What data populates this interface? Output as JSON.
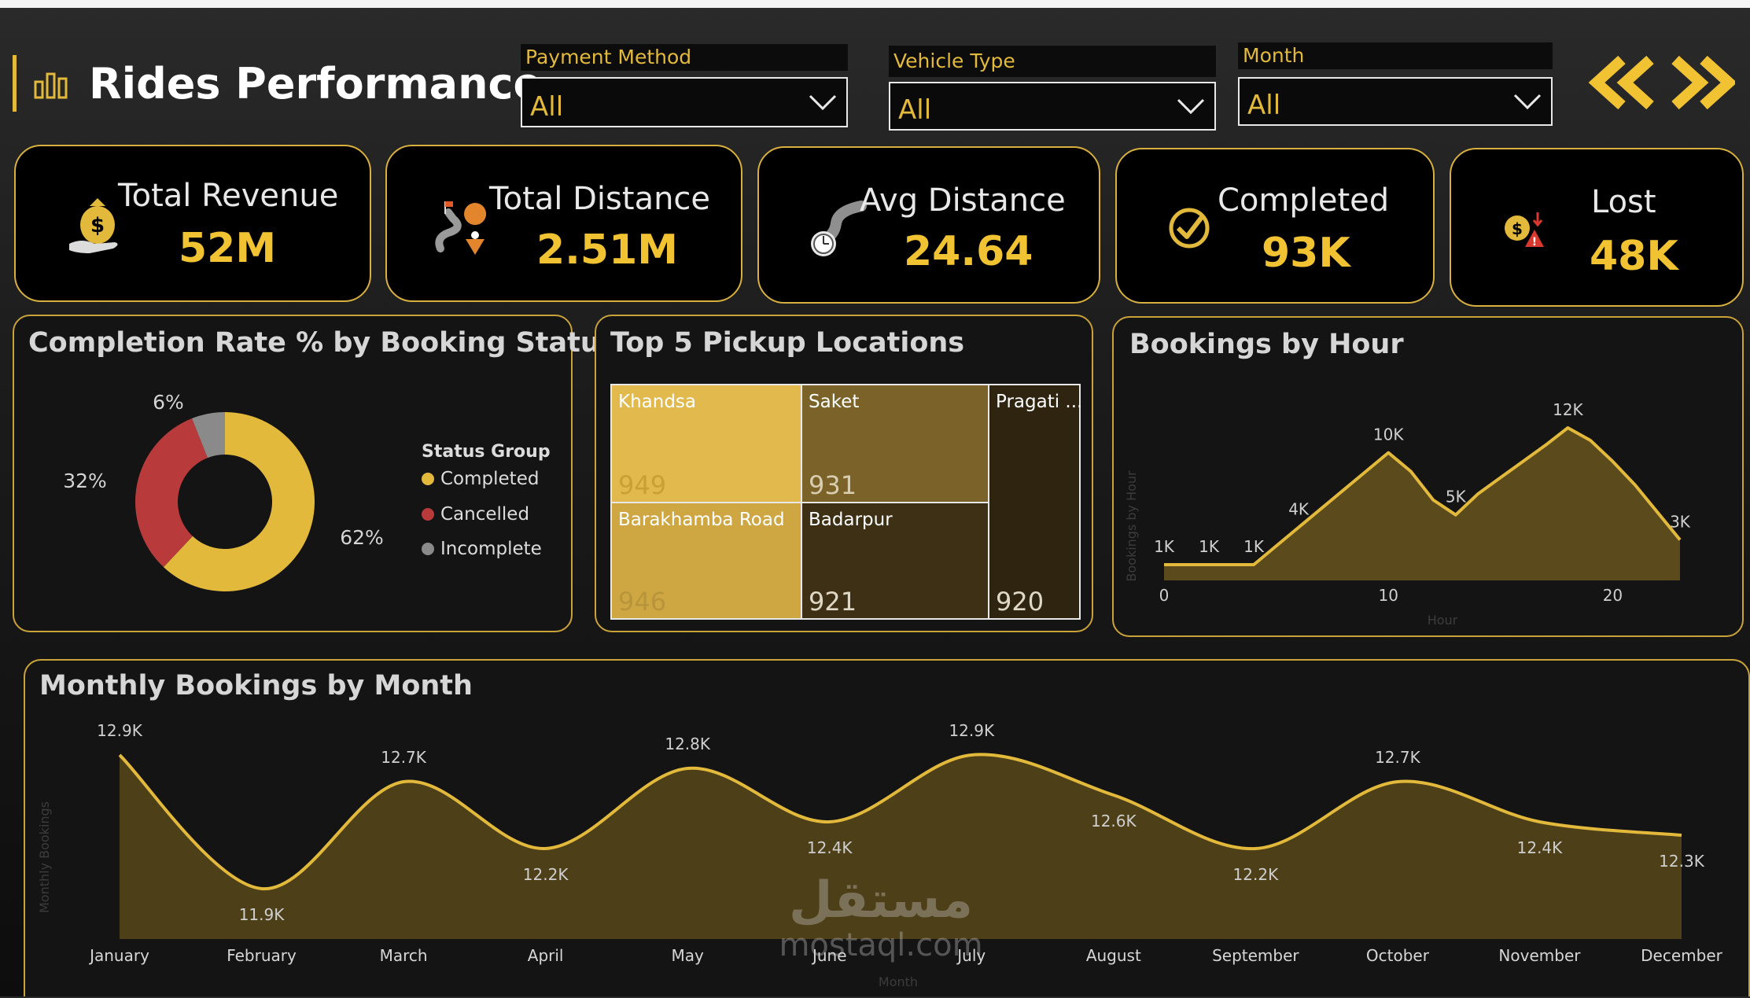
{
  "header": {
    "title": "Rides Performance"
  },
  "filters": [
    {
      "label": "Payment Method",
      "value": "All"
    },
    {
      "label": "Vehicle Type",
      "value": "All"
    },
    {
      "label": "Month",
      "value": "All"
    }
  ],
  "kpis": [
    {
      "label": "Total Revenue",
      "value": "52M",
      "icon": "money-bag-icon"
    },
    {
      "label": "Total Distance",
      "value": "2.51M",
      "icon": "route-pin-icon"
    },
    {
      "label": "Avg Distance",
      "value": "24.64",
      "icon": "road-stopwatch-icon"
    },
    {
      "label": "Completed",
      "value": "93K",
      "icon": "check-circle-icon"
    },
    {
      "label": "Lost",
      "value": "48K",
      "icon": "loss-warning-icon"
    }
  ],
  "colors": {
    "gold": "#e2b93b",
    "red": "#b83a3a",
    "gray": "#8a8a8a",
    "card_border": "#d8b040"
  },
  "watermark": {
    "arabic": "مستقل",
    "latin": "mostaql.com"
  },
  "chart_data": [
    {
      "type": "pie",
      "title": "Completion Rate % by Booking Status",
      "legend_title": "Status Group",
      "legend_position": "right",
      "slices": [
        {
          "name": "Completed",
          "value": 62,
          "label": "62%",
          "color": "#e2b93b"
        },
        {
          "name": "Cancelled",
          "value": 32,
          "label": "32%",
          "color": "#b83a3a"
        },
        {
          "name": "Incomplete",
          "value": 6,
          "label": "6%",
          "color": "#8a8a8a"
        }
      ]
    },
    {
      "type": "treemap",
      "title": "Top 5 Pickup Locations",
      "items": [
        {
          "name": "Khandsa",
          "value": 949,
          "label": "949"
        },
        {
          "name": "Barakhamba Road",
          "value": 946,
          "label": "946"
        },
        {
          "name": "Saket",
          "value": 931,
          "label": "931"
        },
        {
          "name": "Badarpur",
          "value": 921,
          "label": "921"
        },
        {
          "name": "Pragati ...",
          "value": 920,
          "label": "920"
        }
      ]
    },
    {
      "type": "area",
      "title": "Bookings by Hour",
      "xlabel": "Hour",
      "ylabel": "Bookings by Hour",
      "xlim": [
        0,
        23
      ],
      "x_ticks": [
        "0",
        "10",
        "20"
      ],
      "x": [
        0,
        1,
        2,
        3,
        4,
        5,
        6,
        7,
        8,
        9,
        10,
        11,
        12,
        13,
        14,
        15,
        16,
        17,
        18,
        19,
        20,
        21,
        22,
        23
      ],
      "values": [
        1000,
        1000,
        1000,
        1000,
        1000,
        2500,
        4000,
        5500,
        7000,
        8500,
        10000,
        8500,
        6200,
        5000,
        6700,
        8000,
        9300,
        10600,
        12000,
        11000,
        9300,
        7400,
        5200,
        3000
      ],
      "data_labels": [
        {
          "x": 0,
          "text": "1K"
        },
        {
          "x": 2,
          "text": "1K"
        },
        {
          "x": 4,
          "text": "1K"
        },
        {
          "x": 6,
          "text": "4K"
        },
        {
          "x": 10,
          "text": "10K"
        },
        {
          "x": 13,
          "text": "5K"
        },
        {
          "x": 18,
          "text": "12K"
        },
        {
          "x": 23,
          "text": "3K"
        }
      ]
    },
    {
      "type": "area",
      "title": "Monthly Bookings by Month",
      "xlabel": "Month",
      "ylabel": "Monthly Bookings",
      "categories": [
        "January",
        "February",
        "March",
        "April",
        "May",
        "June",
        "July",
        "August",
        "September",
        "October",
        "November",
        "December"
      ],
      "values": [
        12.9,
        11.9,
        12.7,
        12.2,
        12.8,
        12.4,
        12.9,
        12.6,
        12.2,
        12.7,
        12.4,
        12.3
      ],
      "labels": [
        "12.9K",
        "11.9K",
        "12.7K",
        "12.2K",
        "12.8K",
        "12.4K",
        "12.9K",
        "12.6K",
        "12.2K",
        "12.7K",
        "12.4K",
        "12.3K"
      ],
      "unit": "K"
    }
  ]
}
